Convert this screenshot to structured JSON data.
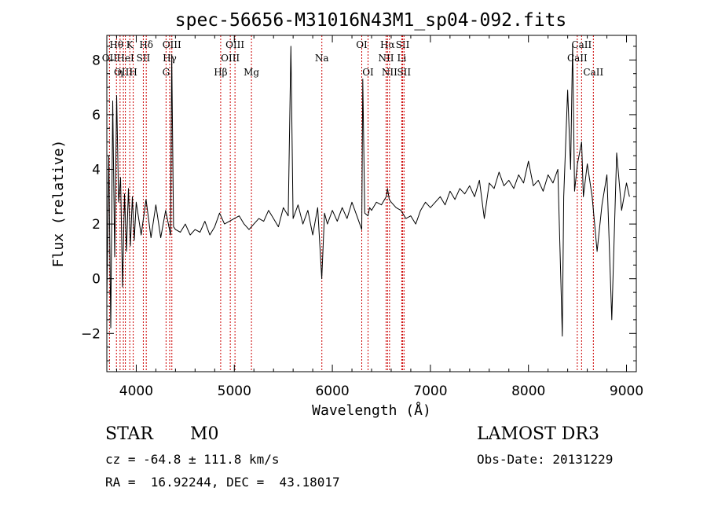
{
  "chart_data": {
    "type": "line",
    "title": "spec-56656-M31016N43M1_sp04-092.fits",
    "xlabel": "Wavelength (Å)",
    "ylabel": "Flux (relative)",
    "xlim": [
      3700,
      9100
    ],
    "ylim": [
      -3.4,
      8.9
    ],
    "xticks": [
      4000,
      5000,
      6000,
      7000,
      8000,
      9000
    ],
    "yticks": [
      -2,
      0,
      2,
      4,
      6,
      8
    ],
    "series": [
      {
        "name": "spectrum",
        "x": [
          3700,
          3720,
          3740,
          3760,
          3780,
          3800,
          3820,
          3840,
          3860,
          3880,
          3900,
          3920,
          3940,
          3960,
          3980,
          4000,
          4050,
          4100,
          4150,
          4200,
          4250,
          4300,
          4350,
          4362,
          4380,
          4400,
          4450,
          4500,
          4550,
          4600,
          4650,
          4700,
          4750,
          4800,
          4850,
          4900,
          4950,
          5000,
          5050,
          5100,
          5150,
          5200,
          5250,
          5300,
          5350,
          5400,
          5450,
          5500,
          5550,
          5577,
          5600,
          5650,
          5700,
          5750,
          5800,
          5850,
          5892,
          5920,
          5950,
          6000,
          6050,
          6100,
          6150,
          6200,
          6250,
          6300,
          6310,
          6330,
          6364,
          6380,
          6400,
          6450,
          6500,
          6550,
          6563,
          6580,
          6600,
          6650,
          6700,
          6750,
          6800,
          6850,
          6900,
          6950,
          7000,
          7050,
          7100,
          7150,
          7200,
          7250,
          7300,
          7350,
          7400,
          7450,
          7500,
          7550,
          7600,
          7650,
          7700,
          7750,
          7800,
          7850,
          7900,
          7950,
          8000,
          8050,
          8100,
          8150,
          8200,
          8250,
          8300,
          8330,
          8345,
          8360,
          8400,
          8430,
          8450,
          8470,
          8500,
          8542,
          8560,
          8600,
          8650,
          8700,
          8750,
          8800,
          8850,
          8900,
          8950,
          9000,
          9030
        ],
        "y": [
          -0.8,
          4.5,
          -1.8,
          6.5,
          0.8,
          6.7,
          2.8,
          3.7,
          -0.3,
          3.1,
          1.0,
          3.3,
          1.2,
          3.0,
          1.4,
          2.8,
          1.6,
          2.9,
          1.5,
          2.7,
          1.5,
          2.5,
          1.6,
          8.2,
          1.9,
          1.8,
          1.7,
          2.0,
          1.6,
          1.8,
          1.7,
          2.1,
          1.6,
          1.9,
          2.4,
          2.0,
          2.1,
          2.2,
          2.3,
          2.0,
          1.8,
          2.0,
          2.2,
          2.1,
          2.5,
          2.2,
          1.9,
          2.6,
          2.3,
          8.5,
          2.2,
          2.7,
          2.0,
          2.5,
          1.6,
          2.6,
          0.0,
          2.4,
          2.0,
          2.5,
          2.1,
          2.6,
          2.2,
          2.8,
          2.3,
          1.8,
          7.3,
          2.4,
          2.3,
          2.6,
          2.5,
          2.8,
          2.7,
          3.0,
          3.3,
          2.9,
          2.8,
          2.6,
          2.5,
          2.2,
          2.3,
          2.0,
          2.5,
          2.8,
          2.6,
          2.8,
          3.0,
          2.7,
          3.2,
          2.9,
          3.3,
          3.1,
          3.4,
          3.0,
          3.6,
          2.2,
          3.5,
          3.3,
          3.9,
          3.4,
          3.6,
          3.3,
          3.8,
          3.5,
          4.3,
          3.4,
          3.6,
          3.2,
          3.8,
          3.5,
          4.0,
          0.0,
          -2.1,
          3.0,
          6.9,
          4.0,
          8.6,
          3.2,
          4.2,
          5.0,
          3.0,
          4.2,
          3.0,
          1.0,
          2.7,
          3.8,
          -1.5,
          4.6,
          2.5,
          3.5,
          3.0
        ]
      }
    ],
    "lines": [
      {
        "label": "Hθ",
        "wl": 3798,
        "row": 0
      },
      {
        "label": "OII",
        "wl": 3727,
        "row": 1
      },
      {
        "label": "OIII",
        "wl": 3869,
        "row": 2
      },
      {
        "label": "K",
        "wl": 3934,
        "row": 0
      },
      {
        "label": "H",
        "wl": 3969,
        "row": 2
      },
      {
        "label": "HeI",
        "wl": 3889,
        "row": 1
      },
      {
        "label": "η",
        "wl": 3835,
        "row": 2
      },
      {
        "label": "Hδ",
        "wl": 4102,
        "row": 0
      },
      {
        "label": "SII",
        "wl": 4072,
        "row": 1
      },
      {
        "label": "OIII",
        "wl": 4363,
        "row": 0
      },
      {
        "label": "Hγ",
        "wl": 4341,
        "row": 1
      },
      {
        "label": "G",
        "wl": 4304,
        "row": 2
      },
      {
        "label": "Hβ",
        "wl": 4861,
        "row": 2
      },
      {
        "label": "OIII",
        "wl": 5007,
        "row": 0
      },
      {
        "label": "OIII",
        "wl": 4959,
        "row": 1
      },
      {
        "label": "Mg",
        "wl": 5175,
        "row": 2
      },
      {
        "label": "Na",
        "wl": 5893,
        "row": 1
      },
      {
        "label": "OI",
        "wl": 6300,
        "row": 0
      },
      {
        "label": "OI",
        "wl": 6364,
        "row": 2
      },
      {
        "label": "Hα",
        "wl": 6563,
        "row": 0
      },
      {
        "label": "NII",
        "wl": 6548,
        "row": 1
      },
      {
        "label": "NII",
        "wl": 6583,
        "row": 2
      },
      {
        "label": "SII",
        "wl": 6717,
        "row": 0
      },
      {
        "label": "Li",
        "wl": 6708,
        "row": 1
      },
      {
        "label": "SII",
        "wl": 6731,
        "row": 2
      },
      {
        "label": "CaII",
        "wl": 8542,
        "row": 0
      },
      {
        "label": "CaII",
        "wl": 8498,
        "row": 1
      },
      {
        "label": "CaII",
        "wl": 8662,
        "row": 2
      }
    ],
    "line_color": "#cc0000",
    "plot_color": "#000000"
  },
  "info": {
    "class": "STAR",
    "subclass": "M0",
    "survey": "LAMOST DR3",
    "cz": "cz = -64.8 ± 111.8 km/s",
    "obs_date": "Obs-Date: 20131229",
    "coords": "RA =  16.92244, DEC =  43.18017"
  }
}
